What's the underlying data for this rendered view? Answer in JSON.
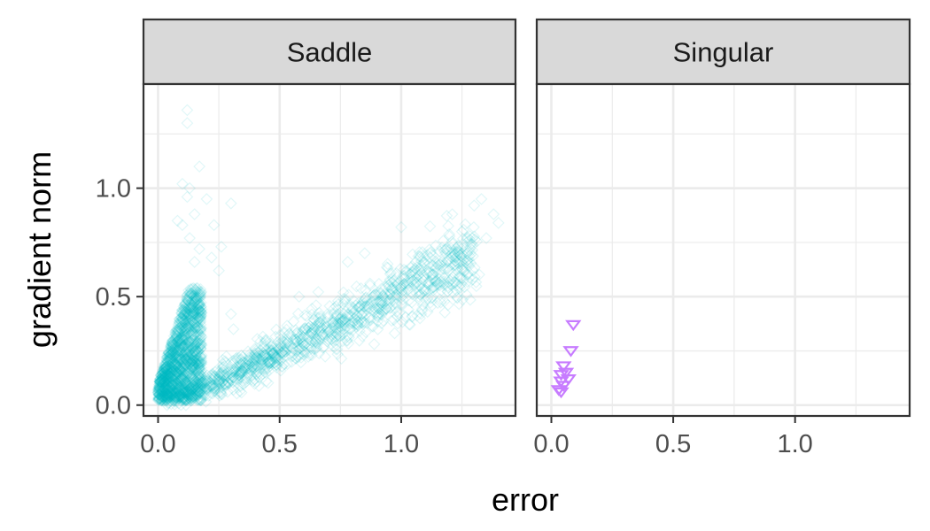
{
  "chart_data": {
    "type": "scatter",
    "xlabel": "error",
    "ylabel": "gradient norm",
    "xlim": [
      -0.06,
      1.47
    ],
    "ylim": [
      -0.05,
      1.48
    ],
    "x_ticks": [
      {
        "value": 0,
        "label": "0.0"
      },
      {
        "value": 0.5,
        "label": "0.5"
      },
      {
        "value": 1,
        "label": "1.0"
      }
    ],
    "y_ticks": [
      {
        "value": 0,
        "label": "0.0"
      },
      {
        "value": 0.5,
        "label": "0.5"
      },
      {
        "value": 1,
        "label": "1.0"
      }
    ],
    "grid": true,
    "legend": "none",
    "panels": [
      {
        "title": "Saddle",
        "color": "#00BCC8",
        "marker": "diamond-open",
        "point_opacity": 0.12,
        "outliers": [
          [
            0.12,
            1.36
          ],
          [
            0.12,
            1.3
          ],
          [
            0.1,
            1.02
          ],
          [
            0.13,
            1.0
          ],
          [
            0.17,
            1.1
          ],
          [
            0.12,
            0.96
          ],
          [
            0.2,
            0.95
          ],
          [
            0.3,
            0.93
          ],
          [
            0.15,
            0.88
          ],
          [
            0.08,
            0.85
          ],
          [
            0.1,
            0.83
          ],
          [
            0.23,
            0.83
          ],
          [
            0.13,
            0.77
          ],
          [
            0.17,
            0.72
          ],
          [
            0.26,
            0.73
          ],
          [
            0.22,
            0.68
          ],
          [
            0.25,
            0.62
          ],
          [
            0.15,
            0.66
          ],
          [
            0.3,
            0.42
          ],
          [
            0.31,
            0.35
          ],
          [
            1.33,
            0.95
          ],
          [
            1.38,
            0.88
          ],
          [
            1.4,
            0.84
          ],
          [
            1.3,
            0.92
          ],
          [
            1.21,
            0.88
          ],
          [
            1.25,
            0.8
          ],
          [
            1.35,
            0.77
          ],
          [
            1.0,
            0.82
          ],
          [
            0.85,
            0.7
          ],
          [
            1.12,
            0.68
          ],
          [
            0.78,
            0.66
          ],
          [
            0.58,
            0.5
          ],
          [
            0.65,
            0.46
          ]
        ],
        "main_branch": {
          "x_range": [
            0.0,
            0.18
          ],
          "y_range": [
            0.0,
            0.52
          ],
          "count": 1600
        },
        "trend": [
          [
            0.03,
            0.03
          ],
          [
            0.3,
            0.13
          ],
          [
            0.6,
            0.3
          ],
          [
            0.9,
            0.46
          ],
          [
            1.2,
            0.64
          ],
          [
            1.3,
            0.7
          ]
        ],
        "trend_count": 1300
      },
      {
        "title": "Singular",
        "color": "#C77CFF",
        "marker": "triangle-down-open",
        "point_opacity": 1,
        "points": [
          [
            0.09,
            0.37
          ],
          [
            0.08,
            0.25
          ],
          [
            0.05,
            0.18
          ],
          [
            0.06,
            0.15
          ],
          [
            0.04,
            0.14
          ],
          [
            0.07,
            0.12
          ],
          [
            0.04,
            0.11
          ],
          [
            0.05,
            0.09
          ],
          [
            0.03,
            0.07
          ],
          [
            0.04,
            0.06
          ]
        ]
      }
    ]
  }
}
